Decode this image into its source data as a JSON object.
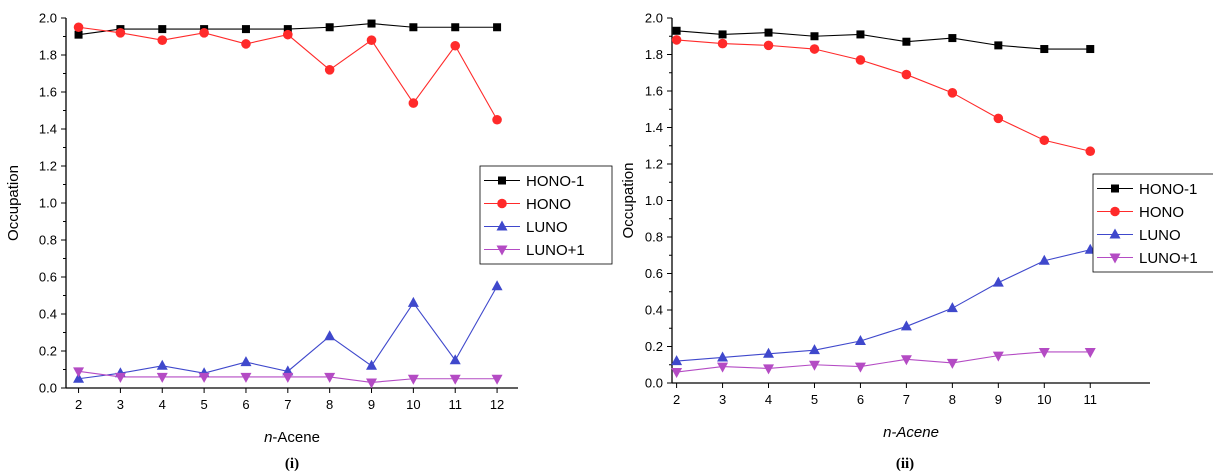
{
  "chart_data": [
    {
      "type": "line",
      "panel_label": "(i)",
      "xlabel_italic": "n",
      "xlabel_rest": "-Acene",
      "ylabel": "Occupation",
      "x": [
        2,
        3,
        4,
        5,
        6,
        7,
        8,
        9,
        10,
        11,
        12
      ],
      "xlim": [
        1.7,
        12.5
      ],
      "ylim": [
        0,
        2.0
      ],
      "yticks": [
        "0.0",
        "0.2",
        "0.4",
        "0.6",
        "0.8",
        "1.0",
        "1.2",
        "1.4",
        "1.6",
        "1.8",
        "2.0"
      ],
      "legend_position": "right",
      "series": [
        {
          "name": "HONO-1",
          "color": "#000000",
          "marker": "square",
          "values": [
            1.91,
            1.94,
            1.94,
            1.94,
            1.94,
            1.94,
            1.95,
            1.97,
            1.95,
            1.95,
            1.95
          ]
        },
        {
          "name": "HONO",
          "color": "#ff2a2a",
          "marker": "circle",
          "values": [
            1.95,
            1.92,
            1.88,
            1.92,
            1.86,
            1.91,
            1.72,
            1.88,
            1.54,
            1.85,
            1.45
          ]
        },
        {
          "name": "LUNO",
          "color": "#3f48cc",
          "marker": "triangle-up",
          "values": [
            0.05,
            0.08,
            0.12,
            0.08,
            0.14,
            0.09,
            0.28,
            0.12,
            0.46,
            0.15,
            0.55
          ]
        },
        {
          "name": "LUNO+1",
          "color": "#b44bc4",
          "marker": "triangle-down",
          "values": [
            0.09,
            0.06,
            0.06,
            0.06,
            0.06,
            0.06,
            0.06,
            0.03,
            0.05,
            0.05,
            0.05
          ]
        }
      ]
    },
    {
      "type": "line",
      "panel_label": "(ii)",
      "xlabel_italic": "n-Acene",
      "xlabel_rest": "",
      "ylabel": "Occupation",
      "x": [
        2,
        3,
        4,
        5,
        6,
        7,
        8,
        9,
        10,
        11
      ],
      "xlim": [
        1.9,
        12.3
      ],
      "ylim": [
        0,
        2.0
      ],
      "yticks": [
        "0.0",
        "0.2",
        "0.4",
        "0.6",
        "0.8",
        "1.0",
        "1.2",
        "1.4",
        "1.6",
        "1.8",
        "2.0"
      ],
      "legend_position": "right",
      "series": [
        {
          "name": "HONO-1",
          "color": "#000000",
          "marker": "square",
          "values": [
            1.93,
            1.91,
            1.92,
            1.9,
            1.91,
            1.87,
            1.89,
            1.85,
            1.83,
            1.83
          ]
        },
        {
          "name": "HONO",
          "color": "#ff2a2a",
          "marker": "circle",
          "values": [
            1.88,
            1.86,
            1.85,
            1.83,
            1.77,
            1.69,
            1.59,
            1.45,
            1.33,
            1.27
          ]
        },
        {
          "name": "LUNO",
          "color": "#3f48cc",
          "marker": "triangle-up",
          "values": [
            0.12,
            0.14,
            0.16,
            0.18,
            0.23,
            0.31,
            0.41,
            0.55,
            0.67,
            0.73
          ]
        },
        {
          "name": "LUNO+1",
          "color": "#b44bc4",
          "marker": "triangle-down",
          "values": [
            0.06,
            0.09,
            0.08,
            0.1,
            0.09,
            0.13,
            0.11,
            0.15,
            0.17,
            0.17
          ]
        }
      ]
    }
  ]
}
